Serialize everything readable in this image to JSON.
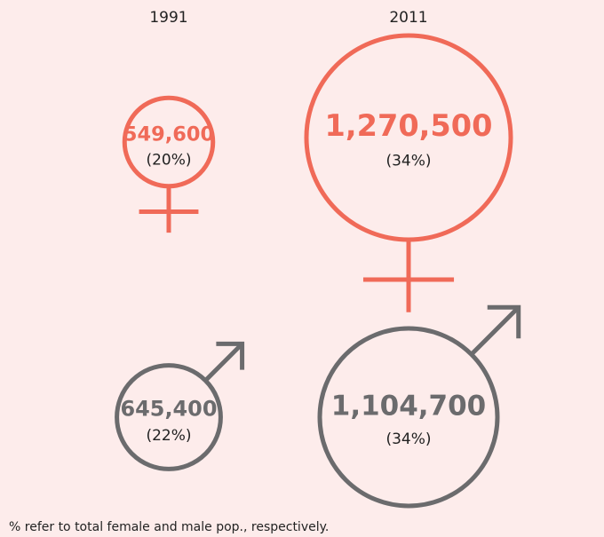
{
  "chart_data": {
    "type": "gender-symbols",
    "categories": [
      "1991",
      "2011"
    ],
    "series": [
      {
        "color": "#f06a58",
        "symbol": "female",
        "values": [
          549600,
          1270500
        ],
        "value_labels": [
          "549,600",
          "1,270,500"
        ],
        "shares": [
          "(20%)",
          "(34%)"
        ]
      },
      {
        "color": "#6b6b6d",
        "symbol": "male",
        "values": [
          645400,
          1104700
        ],
        "value_labels": [
          "645,400",
          "1,104,700"
        ],
        "shares": [
          "(22%)",
          "(34%)"
        ]
      }
    ],
    "note": "% refer to total female and male pop., respectively."
  }
}
